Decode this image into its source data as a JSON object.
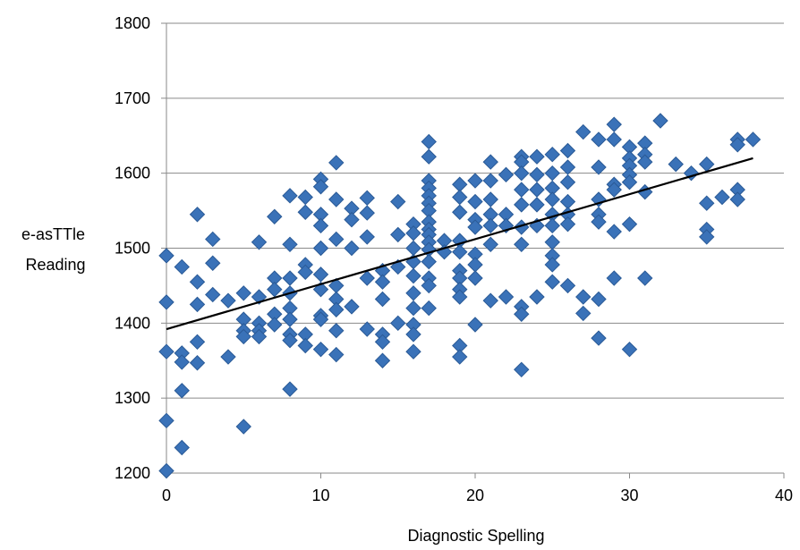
{
  "chart_data": {
    "type": "scatter",
    "title": "",
    "xlabel": "Diagnostic Spelling",
    "ylabel_lines": [
      "e-asTTle",
      "Reading"
    ],
    "xlim": [
      0,
      40
    ],
    "ylim": [
      1200,
      1800
    ],
    "xticks": [
      0,
      10,
      20,
      30,
      40
    ],
    "yticks": [
      1200,
      1300,
      1400,
      1500,
      1600,
      1700,
      1800
    ],
    "grid": "horizontal",
    "legend": "none",
    "marker": "diamond",
    "marker_color": "#3a72b8",
    "marker_edge": "#2a5a96",
    "trendline": {
      "x": [
        0,
        38
      ],
      "y": [
        1392,
        1620
      ],
      "color": "#000000"
    },
    "series": [
      {
        "points": [
          [
            0,
            1490
          ],
          [
            0,
            1428
          ],
          [
            0,
            1362
          ],
          [
            0,
            1270
          ],
          [
            0,
            1203
          ],
          [
            1,
            1475
          ],
          [
            1,
            1360
          ],
          [
            1,
            1348
          ],
          [
            1,
            1310
          ],
          [
            1,
            1234
          ],
          [
            2,
            1545
          ],
          [
            2,
            1455
          ],
          [
            2,
            1425
          ],
          [
            2,
            1375
          ],
          [
            2,
            1347
          ],
          [
            3,
            1512
          ],
          [
            3,
            1480
          ],
          [
            3,
            1438
          ],
          [
            4,
            1430
          ],
          [
            4,
            1355
          ],
          [
            5,
            1440
          ],
          [
            5,
            1405
          ],
          [
            5,
            1390
          ],
          [
            5,
            1382
          ],
          [
            5,
            1262
          ],
          [
            6,
            1508
          ],
          [
            6,
            1435
          ],
          [
            6,
            1400
          ],
          [
            6,
            1390
          ],
          [
            6,
            1382
          ],
          [
            7,
            1542
          ],
          [
            7,
            1460
          ],
          [
            7,
            1445
          ],
          [
            7,
            1412
          ],
          [
            7,
            1398
          ],
          [
            8,
            1570
          ],
          [
            8,
            1505
          ],
          [
            8,
            1460
          ],
          [
            8,
            1440
          ],
          [
            8,
            1420
          ],
          [
            8,
            1405
          ],
          [
            8,
            1385
          ],
          [
            8,
            1377
          ],
          [
            8,
            1312
          ],
          [
            9,
            1568
          ],
          [
            9,
            1548
          ],
          [
            9,
            1478
          ],
          [
            9,
            1468
          ],
          [
            9,
            1385
          ],
          [
            9,
            1370
          ],
          [
            10,
            1592
          ],
          [
            10,
            1582
          ],
          [
            10,
            1545
          ],
          [
            10,
            1530
          ],
          [
            10,
            1500
          ],
          [
            10,
            1465
          ],
          [
            10,
            1445
          ],
          [
            10,
            1410
          ],
          [
            10,
            1405
          ],
          [
            10,
            1365
          ],
          [
            11,
            1614
          ],
          [
            11,
            1565
          ],
          [
            11,
            1512
          ],
          [
            11,
            1450
          ],
          [
            11,
            1432
          ],
          [
            11,
            1418
          ],
          [
            11,
            1390
          ],
          [
            11,
            1358
          ],
          [
            12,
            1553
          ],
          [
            12,
            1538
          ],
          [
            12,
            1500
          ],
          [
            12,
            1422
          ],
          [
            13,
            1567
          ],
          [
            13,
            1547
          ],
          [
            13,
            1515
          ],
          [
            13,
            1460
          ],
          [
            13,
            1392
          ],
          [
            14,
            1470
          ],
          [
            14,
            1455
          ],
          [
            14,
            1432
          ],
          [
            14,
            1385
          ],
          [
            14,
            1375
          ],
          [
            14,
            1350
          ],
          [
            15,
            1562
          ],
          [
            15,
            1518
          ],
          [
            15,
            1475
          ],
          [
            15,
            1400
          ],
          [
            16,
            1532
          ],
          [
            16,
            1520
          ],
          [
            16,
            1500
          ],
          [
            16,
            1482
          ],
          [
            16,
            1463
          ],
          [
            16,
            1440
          ],
          [
            16,
            1420
          ],
          [
            16,
            1398
          ],
          [
            16,
            1385
          ],
          [
            16,
            1362
          ],
          [
            17,
            1642
          ],
          [
            17,
            1622
          ],
          [
            17,
            1590
          ],
          [
            17,
            1580
          ],
          [
            17,
            1570
          ],
          [
            17,
            1560
          ],
          [
            17,
            1550
          ],
          [
            17,
            1535
          ],
          [
            17,
            1525
          ],
          [
            17,
            1518
          ],
          [
            17,
            1508
          ],
          [
            17,
            1498
          ],
          [
            17,
            1482
          ],
          [
            17,
            1460
          ],
          [
            17,
            1450
          ],
          [
            17,
            1420
          ],
          [
            18,
            1510
          ],
          [
            18,
            1495
          ],
          [
            19,
            1585
          ],
          [
            19,
            1568
          ],
          [
            19,
            1548
          ],
          [
            19,
            1510
          ],
          [
            19,
            1495
          ],
          [
            19,
            1470
          ],
          [
            19,
            1460
          ],
          [
            19,
            1445
          ],
          [
            19,
            1435
          ],
          [
            19,
            1370
          ],
          [
            19,
            1355
          ],
          [
            20,
            1590
          ],
          [
            20,
            1562
          ],
          [
            20,
            1538
          ],
          [
            20,
            1528
          ],
          [
            20,
            1492
          ],
          [
            20,
            1478
          ],
          [
            20,
            1460
          ],
          [
            20,
            1398
          ],
          [
            21,
            1615
          ],
          [
            21,
            1590
          ],
          [
            21,
            1565
          ],
          [
            21,
            1545
          ],
          [
            21,
            1530
          ],
          [
            21,
            1505
          ],
          [
            21,
            1430
          ],
          [
            22,
            1598
          ],
          [
            22,
            1545
          ],
          [
            22,
            1530
          ],
          [
            22,
            1435
          ],
          [
            23,
            1622
          ],
          [
            23,
            1615
          ],
          [
            23,
            1600
          ],
          [
            23,
            1578
          ],
          [
            23,
            1558
          ],
          [
            23,
            1528
          ],
          [
            23,
            1505
          ],
          [
            23,
            1422
          ],
          [
            23,
            1412
          ],
          [
            23,
            1338
          ],
          [
            24,
            1622
          ],
          [
            24,
            1598
          ],
          [
            24,
            1578
          ],
          [
            24,
            1558
          ],
          [
            24,
            1530
          ],
          [
            24,
            1435
          ],
          [
            25,
            1625
          ],
          [
            25,
            1600
          ],
          [
            25,
            1580
          ],
          [
            25,
            1565
          ],
          [
            25,
            1545
          ],
          [
            25,
            1530
          ],
          [
            25,
            1508
          ],
          [
            25,
            1490
          ],
          [
            25,
            1478
          ],
          [
            25,
            1455
          ],
          [
            26,
            1630
          ],
          [
            26,
            1608
          ],
          [
            26,
            1588
          ],
          [
            26,
            1562
          ],
          [
            26,
            1545
          ],
          [
            26,
            1532
          ],
          [
            26,
            1450
          ],
          [
            27,
            1655
          ],
          [
            27,
            1435
          ],
          [
            27,
            1413
          ],
          [
            28,
            1645
          ],
          [
            28,
            1608
          ],
          [
            28,
            1565
          ],
          [
            28,
            1545
          ],
          [
            28,
            1535
          ],
          [
            28,
            1432
          ],
          [
            28,
            1380
          ],
          [
            29,
            1665
          ],
          [
            29,
            1645
          ],
          [
            29,
            1585
          ],
          [
            29,
            1578
          ],
          [
            29,
            1522
          ],
          [
            29,
            1460
          ],
          [
            30,
            1635
          ],
          [
            30,
            1620
          ],
          [
            30,
            1610
          ],
          [
            30,
            1598
          ],
          [
            30,
            1588
          ],
          [
            30,
            1532
          ],
          [
            30,
            1365
          ],
          [
            31,
            1640
          ],
          [
            31,
            1625
          ],
          [
            31,
            1615
          ],
          [
            31,
            1575
          ],
          [
            31,
            1460
          ],
          [
            32,
            1670
          ],
          [
            33,
            1612
          ],
          [
            34,
            1600
          ],
          [
            35,
            1612
          ],
          [
            35,
            1560
          ],
          [
            35,
            1525
          ],
          [
            35,
            1515
          ],
          [
            36,
            1568
          ],
          [
            37,
            1645
          ],
          [
            37,
            1638
          ],
          [
            37,
            1578
          ],
          [
            37,
            1565
          ],
          [
            38,
            1645
          ]
        ]
      }
    ]
  }
}
